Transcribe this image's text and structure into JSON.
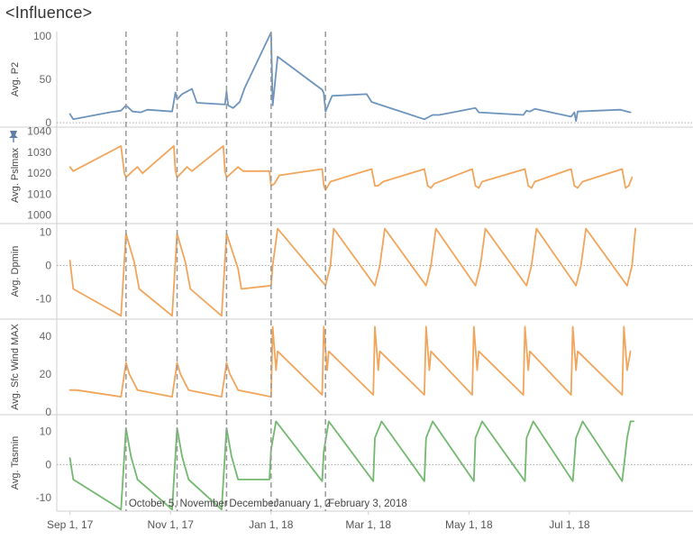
{
  "title": "<Influence>",
  "colors": {
    "p2": "#6c94bd",
    "orange": "#f1a55b",
    "green": "#72b86e",
    "ref_line": "#999999",
    "zero_line": "#aaaaaa",
    "border": "#cfcfcf",
    "pin": "#5f7da7"
  },
  "pin_icon": "pushpin-icon",
  "chart_data": {
    "type": "line",
    "x_axis": {
      "ticks": [
        "2017-09-01",
        "2017-11-01",
        "2018-01-01",
        "2018-03-01",
        "2018-05-01",
        "2018-07-01"
      ],
      "tick_labels": [
        "Sep 1, 17",
        "Nov 1, 17",
        "Jan 1, 18",
        "Mar 1, 18",
        "May 1, 18",
        "Jul 1, 18"
      ],
      "range": [
        "2017-08-24",
        "2018-08-28"
      ]
    },
    "reference_lines": {
      "dates": [
        "2017-10-05",
        "2017-11-05",
        "2017-12-05",
        "2018-01-01",
        "2018-02-03"
      ],
      "labels": [
        "October 5,",
        "November",
        "December",
        "January 1, 2",
        "February 3, 2018"
      ]
    },
    "panels": [
      {
        "ylabel": "Avg. P2",
        "color": "p2",
        "ylim": [
          -5,
          105
        ],
        "yticks": [
          0,
          50,
          100
        ],
        "zero_line": true,
        "series": [
          [
            "2017-09-01",
            10
          ],
          [
            "2017-09-03",
            4
          ],
          [
            "2017-09-25",
            12
          ],
          [
            "2017-10-02",
            14
          ],
          [
            "2017-10-05",
            20
          ],
          [
            "2017-10-09",
            13
          ],
          [
            "2017-10-14",
            12
          ],
          [
            "2017-10-18",
            15
          ],
          [
            "2017-11-02",
            13
          ],
          [
            "2017-11-04",
            35
          ],
          [
            "2017-11-05",
            27
          ],
          [
            "2017-11-08",
            33
          ],
          [
            "2017-11-14",
            39
          ],
          [
            "2017-11-17",
            23
          ],
          [
            "2017-12-04",
            21
          ],
          [
            "2017-12-05",
            36
          ],
          [
            "2017-12-06",
            20
          ],
          [
            "2017-12-09",
            17
          ],
          [
            "2017-12-13",
            24
          ],
          [
            "2017-12-16",
            40
          ],
          [
            "2018-01-01",
            104
          ],
          [
            "2018-01-02",
            20
          ],
          [
            "2018-01-05",
            76
          ],
          [
            "2018-02-01",
            38
          ],
          [
            "2018-02-02",
            34
          ],
          [
            "2018-02-03",
            13
          ],
          [
            "2018-02-07",
            31
          ],
          [
            "2018-02-28",
            33
          ],
          [
            "2018-03-03",
            24
          ],
          [
            "2018-04-04",
            4
          ],
          [
            "2018-04-09",
            9
          ],
          [
            "2018-04-13",
            9
          ],
          [
            "2018-05-05",
            17
          ],
          [
            "2018-05-07",
            12
          ],
          [
            "2018-06-03",
            9
          ],
          [
            "2018-06-05",
            14
          ],
          [
            "2018-06-07",
            13
          ],
          [
            "2018-06-10",
            16
          ],
          [
            "2018-07-02",
            7
          ],
          [
            "2018-07-04",
            12
          ],
          [
            "2018-07-05",
            2
          ],
          [
            "2018-07-06",
            13
          ],
          [
            "2018-08-01",
            15
          ],
          [
            "2018-08-05",
            13
          ],
          [
            "2018-08-07",
            12
          ]
        ]
      },
      {
        "ylabel": "Avg. Pslmax",
        "color": "orange",
        "ylim": [
          996,
          1042
        ],
        "yticks": [
          1000,
          1010,
          1020,
          1030,
          1040
        ],
        "zero_line": false,
        "series": [
          [
            "2017-09-01",
            1023
          ],
          [
            "2017-09-03",
            1021
          ],
          [
            "2017-10-02",
            1033
          ],
          [
            "2017-10-04",
            1020
          ],
          [
            "2017-10-05",
            1018
          ],
          [
            "2017-10-09",
            1021
          ],
          [
            "2017-10-12",
            1023
          ],
          [
            "2017-10-15",
            1020
          ],
          [
            "2017-11-03",
            1033
          ],
          [
            "2017-11-04",
            1021
          ],
          [
            "2017-11-05",
            1018
          ],
          [
            "2017-11-11",
            1023
          ],
          [
            "2017-11-14",
            1021
          ],
          [
            "2017-12-03",
            1033
          ],
          [
            "2017-12-04",
            1021
          ],
          [
            "2017-12-05",
            1018
          ],
          [
            "2017-12-12",
            1023
          ],
          [
            "2017-12-15",
            1021
          ],
          [
            "2017-12-31",
            1021
          ],
          [
            "2018-01-01",
            1014
          ],
          [
            "2018-01-03",
            1015
          ],
          [
            "2018-01-06",
            1019
          ],
          [
            "2018-02-01",
            1022
          ],
          [
            "2018-02-02",
            1014
          ],
          [
            "2018-02-03",
            1012
          ],
          [
            "2018-02-06",
            1016
          ],
          [
            "2018-03-03",
            1022
          ],
          [
            "2018-03-05",
            1014
          ],
          [
            "2018-03-07",
            1014
          ],
          [
            "2018-03-10",
            1016
          ],
          [
            "2018-04-04",
            1022
          ],
          [
            "2018-04-06",
            1014
          ],
          [
            "2018-04-08",
            1013
          ],
          [
            "2018-04-10",
            1015
          ],
          [
            "2018-05-03",
            1022
          ],
          [
            "2018-05-05",
            1014
          ],
          [
            "2018-05-07",
            1013
          ],
          [
            "2018-05-09",
            1016
          ],
          [
            "2018-06-04",
            1022
          ],
          [
            "2018-06-06",
            1014
          ],
          [
            "2018-06-08",
            1013
          ],
          [
            "2018-06-10",
            1016
          ],
          [
            "2018-07-02",
            1022
          ],
          [
            "2018-07-04",
            1014
          ],
          [
            "2018-07-06",
            1013
          ],
          [
            "2018-07-09",
            1016
          ],
          [
            "2018-08-02",
            1022
          ],
          [
            "2018-08-04",
            1013
          ],
          [
            "2018-08-06",
            1014
          ],
          [
            "2018-08-08",
            1018
          ]
        ]
      },
      {
        "ylabel": "Avg. Dpmin",
        "color": "orange",
        "ylim": [
          -16,
          12.5
        ],
        "yticks": [
          -10,
          0,
          10
        ],
        "zero_line": true,
        "series": [
          [
            "2017-09-01",
            1.5
          ],
          [
            "2017-09-03",
            -7
          ],
          [
            "2017-10-02",
            -15
          ],
          [
            "2017-10-05",
            9.5
          ],
          [
            "2017-10-10",
            1
          ],
          [
            "2017-10-13",
            -7
          ],
          [
            "2017-11-02",
            -15
          ],
          [
            "2017-11-05",
            9.5
          ],
          [
            "2017-11-10",
            1
          ],
          [
            "2017-11-13",
            -7
          ],
          [
            "2017-12-02",
            -15
          ],
          [
            "2017-12-05",
            9.5
          ],
          [
            "2017-12-12",
            -1
          ],
          [
            "2017-12-14",
            -7
          ],
          [
            "2018-01-01",
            -6
          ],
          [
            "2018-01-02",
            0
          ],
          [
            "2018-01-05",
            11
          ],
          [
            "2018-02-03",
            -6
          ],
          [
            "2018-02-06",
            0
          ],
          [
            "2018-02-08",
            11
          ],
          [
            "2018-03-05",
            -6
          ],
          [
            "2018-03-08",
            0
          ],
          [
            "2018-03-11",
            11
          ],
          [
            "2018-04-05",
            -6
          ],
          [
            "2018-04-08",
            0
          ],
          [
            "2018-04-11",
            11
          ],
          [
            "2018-05-05",
            -6
          ],
          [
            "2018-05-08",
            0
          ],
          [
            "2018-05-11",
            11
          ],
          [
            "2018-06-05",
            -6
          ],
          [
            "2018-06-08",
            0
          ],
          [
            "2018-06-11",
            11
          ],
          [
            "2018-07-05",
            -6
          ],
          [
            "2018-07-08",
            0
          ],
          [
            "2018-07-11",
            11
          ],
          [
            "2018-08-05",
            -6
          ],
          [
            "2018-08-08",
            0
          ],
          [
            "2018-08-10",
            11
          ]
        ]
      },
      {
        "ylabel": "Avg. Sfc Wind MAX",
        "color": "orange",
        "ylim": [
          -1.5,
          49
        ],
        "yticks": [
          0,
          20,
          40
        ],
        "zero_line": false,
        "series": [
          [
            "2017-09-01",
            11.5
          ],
          [
            "2017-09-05",
            11.5
          ],
          [
            "2017-10-02",
            8
          ],
          [
            "2017-10-04",
            20
          ],
          [
            "2017-10-05",
            26
          ],
          [
            "2017-10-07",
            20
          ],
          [
            "2017-10-12",
            11.5
          ],
          [
            "2017-11-02",
            8
          ],
          [
            "2017-11-04",
            20
          ],
          [
            "2017-11-05",
            26
          ],
          [
            "2017-11-07",
            20
          ],
          [
            "2017-11-12",
            11.5
          ],
          [
            "2017-12-02",
            8
          ],
          [
            "2017-12-04",
            20
          ],
          [
            "2017-12-05",
            26
          ],
          [
            "2017-12-07",
            20
          ],
          [
            "2017-12-12",
            11.5
          ],
          [
            "2018-01-01",
            8
          ],
          [
            "2018-01-02",
            45
          ],
          [
            "2018-01-04",
            22
          ],
          [
            "2018-01-05",
            32
          ],
          [
            "2018-02-01",
            9
          ],
          [
            "2018-02-02",
            45
          ],
          [
            "2018-02-04",
            22
          ],
          [
            "2018-02-05",
            32
          ],
          [
            "2018-03-04",
            9
          ],
          [
            "2018-03-05",
            45
          ],
          [
            "2018-03-07",
            22
          ],
          [
            "2018-03-08",
            32
          ],
          [
            "2018-04-04",
            9
          ],
          [
            "2018-04-05",
            45
          ],
          [
            "2018-04-07",
            22
          ],
          [
            "2018-04-08",
            32
          ],
          [
            "2018-05-03",
            9
          ],
          [
            "2018-05-04",
            45
          ],
          [
            "2018-05-06",
            22
          ],
          [
            "2018-05-07",
            32
          ],
          [
            "2018-06-03",
            9
          ],
          [
            "2018-06-04",
            45
          ],
          [
            "2018-06-06",
            22
          ],
          [
            "2018-06-07",
            32
          ],
          [
            "2018-07-02",
            9
          ],
          [
            "2018-07-03",
            45
          ],
          [
            "2018-07-05",
            22
          ],
          [
            "2018-07-06",
            32
          ],
          [
            "2018-08-02",
            9
          ],
          [
            "2018-08-03",
            45
          ],
          [
            "2018-08-05",
            22
          ],
          [
            "2018-08-07",
            32
          ]
        ]
      },
      {
        "ylabel": "Avg. Tasmin",
        "color": "green",
        "ylim": [
          -14,
          15
        ],
        "yticks": [
          -10,
          0,
          10
        ],
        "zero_line": true,
        "series": [
          [
            "2017-09-01",
            2
          ],
          [
            "2017-09-03",
            -4.5
          ],
          [
            "2017-10-02",
            -13.5
          ],
          [
            "2017-10-05",
            11
          ],
          [
            "2017-10-08",
            2.5
          ],
          [
            "2017-10-12",
            -4.5
          ],
          [
            "2017-11-02",
            -13.5
          ],
          [
            "2017-11-05",
            11
          ],
          [
            "2017-11-08",
            2.5
          ],
          [
            "2017-11-12",
            -4.5
          ],
          [
            "2017-12-02",
            -13.5
          ],
          [
            "2017-12-05",
            11
          ],
          [
            "2017-12-08",
            2.5
          ],
          [
            "2017-12-12",
            -4.5
          ],
          [
            "2017-12-31",
            -4.5
          ],
          [
            "2018-01-01",
            4.5
          ],
          [
            "2018-01-04",
            13
          ],
          [
            "2018-02-01",
            -5
          ],
          [
            "2018-02-02",
            4
          ],
          [
            "2018-02-05",
            13
          ],
          [
            "2018-03-04",
            -5
          ],
          [
            "2018-03-05",
            8
          ],
          [
            "2018-03-09",
            13
          ],
          [
            "2018-04-04",
            -5
          ],
          [
            "2018-04-05",
            8
          ],
          [
            "2018-04-09",
            13
          ],
          [
            "2018-05-04",
            -5
          ],
          [
            "2018-05-05",
            8
          ],
          [
            "2018-05-09",
            13
          ],
          [
            "2018-06-04",
            -5
          ],
          [
            "2018-06-05",
            8
          ],
          [
            "2018-06-09",
            13
          ],
          [
            "2018-07-03",
            -5
          ],
          [
            "2018-07-05",
            8
          ],
          [
            "2018-07-09",
            13
          ],
          [
            "2018-08-02",
            -5
          ],
          [
            "2018-08-05",
            8
          ],
          [
            "2018-08-07",
            13
          ],
          [
            "2018-08-09",
            13
          ]
        ]
      }
    ]
  }
}
